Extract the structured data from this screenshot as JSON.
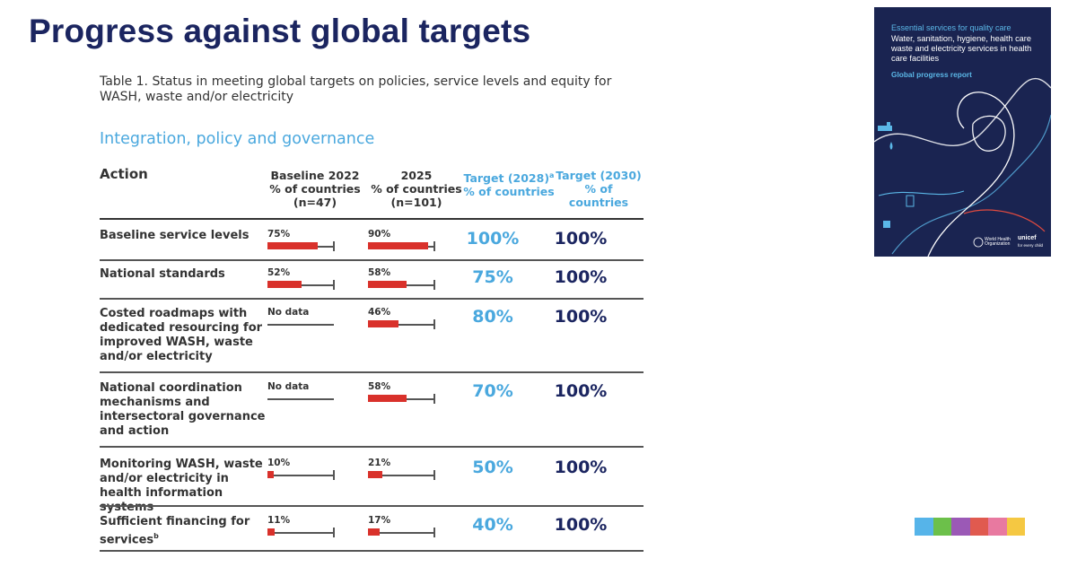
{
  "slide": {
    "title": "Progress against global targets"
  },
  "table": {
    "caption": "Table 1. Status in meeting global targets on policies, service levels and equity for WASH, waste and/or electricity",
    "section": "Integration, policy and governance",
    "columns": {
      "action": "Action",
      "baseline_line1": "Baseline 2022",
      "baseline_line2": "% of countries",
      "baseline_line3": "(n=47)",
      "y2025_line1": "2025",
      "y2025_line2": "% of countries",
      "y2025_line3": "(n=101)",
      "t2028_line1": "Target (2028)",
      "t2028_sup": "a",
      "t2028_line2": "% of countries",
      "t2030_line1": "Target (2030)",
      "t2030_line2": "% of countries"
    },
    "rows": [
      {
        "action": "Baseline service levels",
        "action_sup": "",
        "baseline_label": "75%",
        "baseline_value": 75,
        "y2025_label": "90%",
        "y2025_value": 90,
        "target_2028": "100%",
        "target_2030": "100%"
      },
      {
        "action": "National standards",
        "action_sup": "",
        "baseline_label": "52%",
        "baseline_value": 52,
        "y2025_label": "58%",
        "y2025_value": 58,
        "target_2028": "75%",
        "target_2030": "100%"
      },
      {
        "action": "Costed roadmaps with dedicated resourcing for improved WASH, waste and/or electricity",
        "action_sup": "",
        "baseline_label": "No data",
        "baseline_value": 0,
        "y2025_label": "46%",
        "y2025_value": 46,
        "target_2028": "80%",
        "target_2030": "100%"
      },
      {
        "action": "National coordination mechanisms and intersectoral governance and action",
        "action_sup": "",
        "baseline_label": "No data",
        "baseline_value": 0,
        "y2025_label": "58%",
        "y2025_value": 58,
        "target_2028": "70%",
        "target_2030": "100%"
      },
      {
        "action": "Monitoring WASH, waste and/or electricity in health information systems",
        "action_sup": "",
        "baseline_label": "10%",
        "baseline_value": 10,
        "y2025_label": "21%",
        "y2025_value": 21,
        "target_2028": "50%",
        "target_2030": "100%"
      },
      {
        "action": "Sufficient financing for services",
        "action_sup": "b",
        "baseline_label": "11%",
        "baseline_value": 11,
        "y2025_label": "17%",
        "y2025_value": 17,
        "target_2028": "40%",
        "target_2030": "100%"
      }
    ]
  },
  "cover": {
    "heading": "Essential services for quality care",
    "subtitle": "Water, sanitation, hygiene, health care waste and electricity services in health care facilities",
    "report": "Global progress report",
    "who_line1": "World Health",
    "who_line2": "Organization",
    "unicef": "unicef",
    "unicef_tag": "for every child"
  },
  "colors": {
    "title": "#1b2560",
    "accent_blue": "#4aa8de",
    "bar_red": "#d9312b",
    "cover_bg": "#1a2451",
    "strip": [
      "#56b4e9",
      "#6cc04a",
      "#9b59b6",
      "#e05a4f",
      "#e879a0",
      "#f5c842"
    ]
  }
}
